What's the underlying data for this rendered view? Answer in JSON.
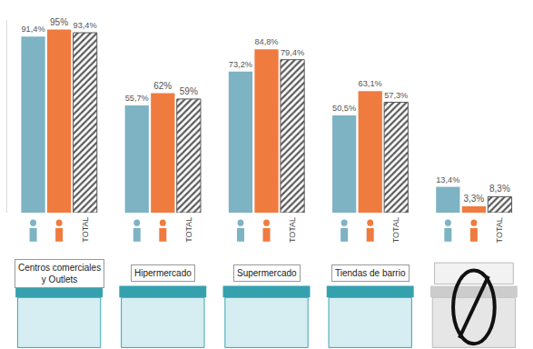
{
  "chart_data": {
    "type": "bar",
    "categories": [
      "Centros comerciales\ny Outlets",
      "Hipermercado",
      "Supermercado",
      "Tiendas de barrio",
      null
    ],
    "series": [
      {
        "color": "#7db3c3",
        "values": [
          91.4,
          55.7,
          73.2,
          50.5,
          13.4
        ],
        "value_labels": [
          "91,4%",
          "55,7%",
          "73,2%",
          "50,5%",
          "13,4%"
        ]
      },
      {
        "color": "#f07b3f",
        "values": [
          95,
          62,
          84.8,
          63.1,
          3.3
        ],
        "value_labels": [
          "95%",
          "62%",
          "84,8%",
          "63,1%",
          "3,3%"
        ]
      },
      {
        "name": "TOTAL",
        "color": "#5a5a5a",
        "marker": "hatched",
        "values": [
          93.4,
          59,
          79.4,
          57.3,
          8.3
        ],
        "value_labels": [
          "93,4%",
          "59%",
          "79,4%",
          "57,3%",
          "8,3%"
        ]
      }
    ],
    "ylim": [
      0,
      100
    ],
    "grid": false,
    "data_labels": true,
    "tick_labels": false
  }
}
